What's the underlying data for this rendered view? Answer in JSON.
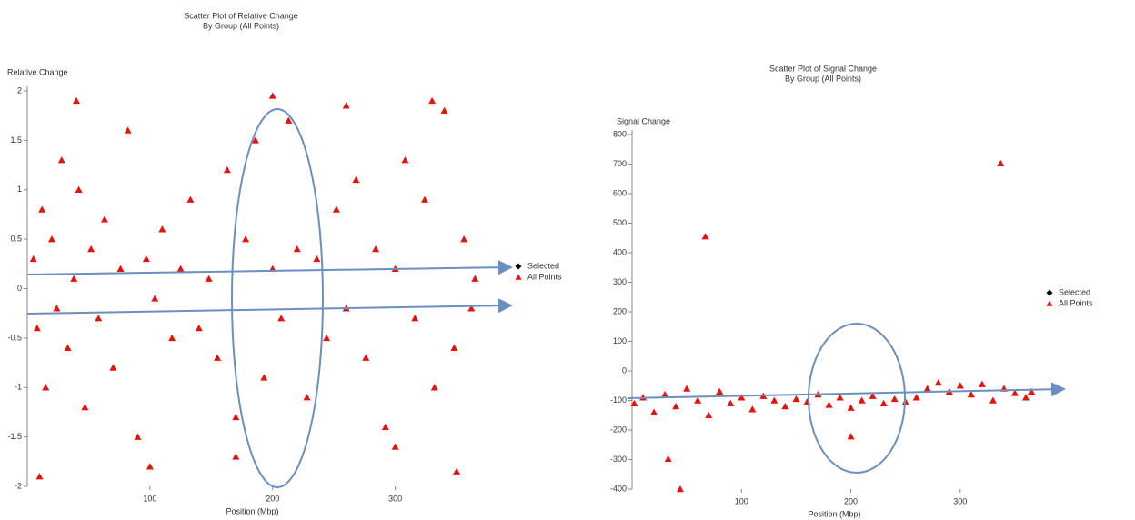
{
  "chart_data": [
    {
      "type": "scatter",
      "title": [
        "Scatter Plot of Relative Change",
        "By Group (All Points)"
      ],
      "y_label": "Relative Change",
      "x_label": "Position (Mbp)",
      "xlim": [
        0,
        367
      ],
      "ylim": [
        -2,
        2
      ],
      "xticks": [
        100,
        200,
        300
      ],
      "yticks": [
        -2,
        -1.5,
        -1,
        -0.5,
        0,
        0.5,
        1,
        1.5,
        2
      ],
      "series": [
        {
          "name": "Selected",
          "color": "#000000",
          "marker": "diamond",
          "x": [],
          "y": []
        },
        {
          "name": "All Points",
          "color": "#e8120c",
          "marker": "triangle",
          "x": [
            5,
            8,
            12,
            15,
            20,
            24,
            28,
            33,
            38,
            42,
            47,
            52,
            58,
            63,
            70,
            76,
            82,
            90,
            97,
            104,
            110,
            118,
            125,
            133,
            140,
            148,
            155,
            163,
            170,
            178,
            186,
            193,
            200,
            207,
            213,
            220,
            228,
            236,
            244,
            252,
            260,
            268,
            276,
            284,
            292,
            300,
            308,
            316,
            324,
            332,
            340,
            348,
            356,
            362,
            10,
            40,
            100,
            170,
            200,
            260,
            300,
            330,
            350,
            365
          ],
          "y": [
            0.3,
            -0.4,
            0.8,
            -1.0,
            0.5,
            -0.2,
            1.3,
            -0.6,
            0.1,
            1.0,
            -1.2,
            0.4,
            -0.3,
            0.7,
            -0.8,
            0.2,
            1.6,
            -1.5,
            0.3,
            -0.1,
            0.6,
            -0.5,
            0.2,
            0.9,
            -0.4,
            0.1,
            -0.7,
            1.2,
            -1.3,
            0.5,
            1.5,
            -0.9,
            0.2,
            -0.3,
            1.7,
            0.4,
            -1.1,
            0.3,
            -0.5,
            0.8,
            -0.2,
            1.1,
            -0.7,
            0.4,
            -1.4,
            0.2,
            1.3,
            -0.3,
            0.9,
            -1.0,
            1.8,
            -0.6,
            0.5,
            -0.2,
            -1.9,
            1.9,
            -1.8,
            -1.7,
            1.95,
            1.85,
            -1.6,
            1.9,
            -1.85,
            0.1
          ]
        }
      ]
    },
    {
      "type": "scatter",
      "title": [
        "Scatter Plot of Signal Change",
        "By Group (All Points)"
      ],
      "y_label": "Signal Change",
      "x_label": "Position (Mbp)",
      "xlim": [
        0,
        370
      ],
      "ylim": [
        -400,
        800
      ],
      "xticks": [
        100,
        200,
        300
      ],
      "yticks": [
        -400,
        -300,
        -200,
        -100,
        0,
        100,
        200,
        300,
        400,
        500,
        600,
        700,
        800
      ],
      "series": [
        {
          "name": "Selected",
          "color": "#000000",
          "marker": "diamond",
          "x": [],
          "y": []
        },
        {
          "name": "All Points",
          "color": "#e8120c",
          "marker": "triangle",
          "x": [
            2,
            10,
            20,
            30,
            40,
            50,
            60,
            70,
            80,
            90,
            100,
            110,
            120,
            130,
            140,
            150,
            160,
            170,
            180,
            190,
            200,
            210,
            220,
            230,
            240,
            250,
            260,
            270,
            280,
            290,
            300,
            310,
            320,
            330,
            340,
            350,
            360,
            365,
            33,
            44,
            67,
            200,
            337
          ],
          "y": [
            -110,
            -90,
            -140,
            -80,
            -120,
            -60,
            -100,
            -150,
            -70,
            -110,
            -90,
            -130,
            -85,
            -100,
            -120,
            -95,
            -105,
            -80,
            -115,
            -90,
            -125,
            -100,
            -85,
            -110,
            -95,
            -105,
            -90,
            -60,
            -40,
            -70,
            -50,
            -80,
            -45,
            -100,
            -60,
            -75,
            -90,
            -70,
            -298,
            -400,
            455,
            -222,
            702
          ]
        }
      ]
    }
  ]
}
